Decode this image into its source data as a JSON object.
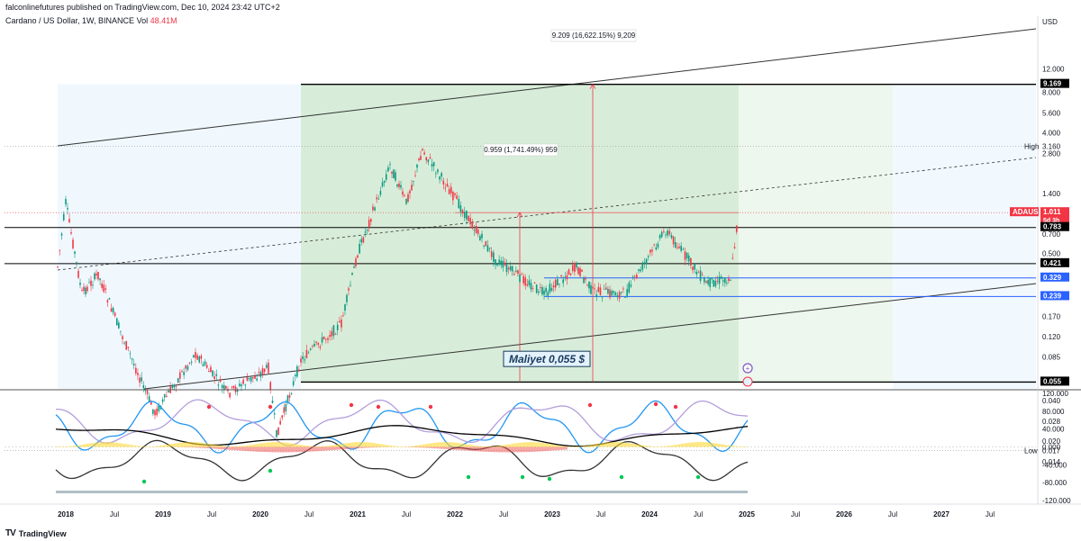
{
  "header": {
    "published": "falconlinefutures published on TradingView.com, Dec 10, 2024 23:42 UTC+2",
    "symbol": "Cardano / US Dollar, 1W, BINANCE",
    "vol_label": "Vol",
    "vol_value": "48.41M"
  },
  "footer": {
    "brand": "TradingView",
    "logo": "TV"
  },
  "chart_data": {
    "type": "candlestick",
    "symbol": "ADAUSD",
    "currency_label": "USD",
    "y_scale": "log",
    "y_ticks": [
      "12.000",
      "8.000",
      "5.600",
      "4.000",
      "2.800",
      "1.400",
      "0.700",
      "0.500",
      "0.240",
      "0.170",
      "0.120",
      "0.085",
      "0.040",
      "0.028",
      "0.020",
      "0.014"
    ],
    "x_ticks": [
      "2018",
      "Jul",
      "2019",
      "Jul",
      "2020",
      "Jul",
      "2021",
      "Jul",
      "2022",
      "Jul",
      "2023",
      "Jul",
      "2024",
      "Jul",
      "2025",
      "Jul",
      "2026",
      "Jul",
      "2027",
      "Jul"
    ],
    "price_path": [
      {
        "date": "2017-12",
        "price": 0.4
      },
      {
        "date": "2018-01",
        "price": 1.2
      },
      {
        "date": "2018-03",
        "price": 0.25
      },
      {
        "date": "2018-05",
        "price": 0.35
      },
      {
        "date": "2018-08",
        "price": 0.12
      },
      {
        "date": "2018-12",
        "price": 0.032
      },
      {
        "date": "2019-05",
        "price": 0.09
      },
      {
        "date": "2019-09",
        "price": 0.045
      },
      {
        "date": "2020-02",
        "price": 0.07
      },
      {
        "date": "2020-03",
        "price": 0.022
      },
      {
        "date": "2020-06",
        "price": 0.08
      },
      {
        "date": "2020-11",
        "price": 0.15
      },
      {
        "date": "2021-01",
        "price": 0.5
      },
      {
        "date": "2021-05",
        "price": 2.3
      },
      {
        "date": "2021-07",
        "price": 1.2
      },
      {
        "date": "2021-09",
        "price": 2.97
      },
      {
        "date": "2022-01",
        "price": 1.3
      },
      {
        "date": "2022-06",
        "price": 0.45
      },
      {
        "date": "2022-12",
        "price": 0.25
      },
      {
        "date": "2023-04",
        "price": 0.4
      },
      {
        "date": "2023-06",
        "price": 0.26
      },
      {
        "date": "2023-10",
        "price": 0.25
      },
      {
        "date": "2024-03",
        "price": 0.75
      },
      {
        "date": "2024-08",
        "price": 0.3
      },
      {
        "date": "2024-11",
        "price": 0.33
      },
      {
        "date": "2024-12",
        "price": 1.011
      }
    ],
    "price_labels": [
      {
        "text": "9.169",
        "value": 9.169,
        "style": "dark"
      },
      {
        "text": "ADAUSD",
        "value": 1.011,
        "style": "red"
      },
      {
        "text": "1.011",
        "value": 1.011,
        "style": "red"
      },
      {
        "text": "5d 3h",
        "value": 1.011,
        "style": "red-sub"
      },
      {
        "text": "0.783",
        "value": 0.783,
        "style": "dark"
      },
      {
        "text": "0.421",
        "value": 0.421,
        "style": "dark"
      },
      {
        "text": "0.329",
        "value": 0.329,
        "style": "blue"
      },
      {
        "text": "0.239",
        "value": 0.239,
        "style": "blue"
      },
      {
        "text": "0.055",
        "value": 0.055,
        "style": "dark"
      }
    ],
    "high": {
      "label": "High",
      "value": "3.160"
    },
    "low": {
      "label": "Low",
      "value": "0.017"
    },
    "horizontal_levels": [
      {
        "value": 9.169,
        "color": "#000000"
      },
      {
        "value": 0.783,
        "color": "#000000"
      },
      {
        "value": 0.421,
        "color": "#000000"
      },
      {
        "value": 0.329,
        "color": "#2962ff"
      },
      {
        "value": 0.239,
        "color": "#2962ff"
      },
      {
        "value": 0.055,
        "color": "#000000"
      }
    ],
    "measurements": [
      {
        "text": "9.209 (16,622.15%) 9,209"
      },
      {
        "text": "0.959 (1,741.49%) 959"
      }
    ],
    "annotation": "Maliyet 0,055 $",
    "indicator_ticks": [
      "120.000",
      "80.000",
      "40.000",
      "0.000",
      "-40.000",
      "-80.000",
      "-120.000"
    ],
    "colors": {
      "up": "#089981",
      "down": "#f23645",
      "accent_blue": "#2962ff",
      "zone_green": "#c8e6c9",
      "zone_blue": "#e3f2fd"
    }
  }
}
